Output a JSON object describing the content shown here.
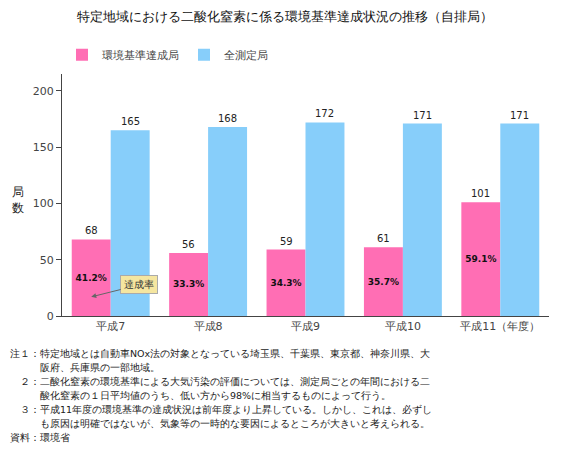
{
  "chart_data": {
    "type": "bar",
    "title": "特定地域における二酸化窒素に係る環境基準達成状況の推移（自排局）",
    "ylabel": "局\n数",
    "categories": [
      "平成7",
      "平成8",
      "平成9",
      "平成10",
      "平成11（年度）"
    ],
    "series": [
      {
        "name": "環境基準達成局",
        "color": "#FF6EB4",
        "values": [
          68,
          56,
          59,
          61,
          101
        ],
        "rate_labels": [
          "41.2%",
          "33.3%",
          "34.3%",
          "35.7%",
          "59.1%"
        ]
      },
      {
        "name": "全測定局",
        "color": "#87CEFA",
        "values": [
          165,
          168,
          172,
          171,
          171
        ]
      }
    ],
    "ylim": [
      0,
      215
    ],
    "yticks": [
      0,
      50,
      100,
      150,
      200
    ],
    "grid": false,
    "legend": "upper left",
    "data_labels": true,
    "annotations": [
      {
        "text": "達成率",
        "category": "平成7"
      }
    ],
    "notes": [
      "注１：特定地域とは自動車NOx法の対象となっている埼玉県、千葉県、東京都、神奈川県、大",
      "　　　阪府、兵庫県の一部地域。",
      "　２：二酸化窒素の環境基準による大気汚染の評価については、測定局ごとの年間における二",
      "　　　酸化窒素の１日平均値のうち、低い方から98%に相当するものによって行う。",
      "　３：平成11年度の環境基準の達成状況は前年度より上昇している。しかし、これは、必ずし",
      "　　　も原因は明確ではないが、気象等の一時的な要因によるところが大きいと考えられる。",
      "資料：環境省"
    ]
  }
}
